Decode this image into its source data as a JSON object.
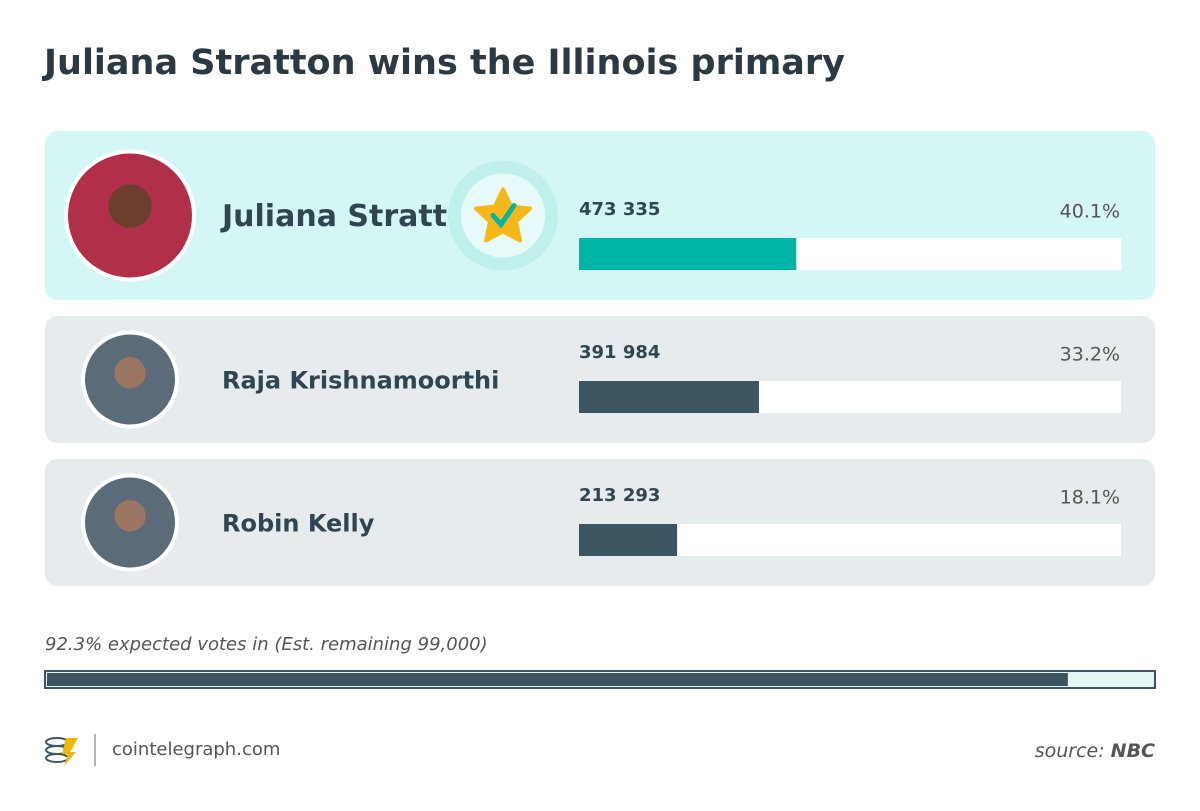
{
  "chart_data": {
    "type": "bar",
    "title": "Juliana Stratton wins the Illinois primary",
    "categories": [
      "Juliana Stratton",
      "Raja Krishnamoorthi",
      "Robin Kelly"
    ],
    "votes": [
      "473 335",
      "391 984",
      "213 293"
    ],
    "values": [
      40.1,
      33.2,
      18.1
    ],
    "value_labels": [
      "40.1%",
      "33.2%",
      "18.1%"
    ],
    "xlim": [
      0,
      100
    ],
    "colors": [
      "#00b5a5",
      "#3d5461",
      "#3d5461"
    ],
    "winner_index": 0,
    "progress": {
      "label": "92.3% expected votes in (Est. remaining 99,000)",
      "value": 92.3,
      "xlim": [
        0,
        100
      ],
      "color": "#3d5461"
    },
    "brand": "cointelegraph.com",
    "source_label": "source:",
    "source": "NBC"
  }
}
